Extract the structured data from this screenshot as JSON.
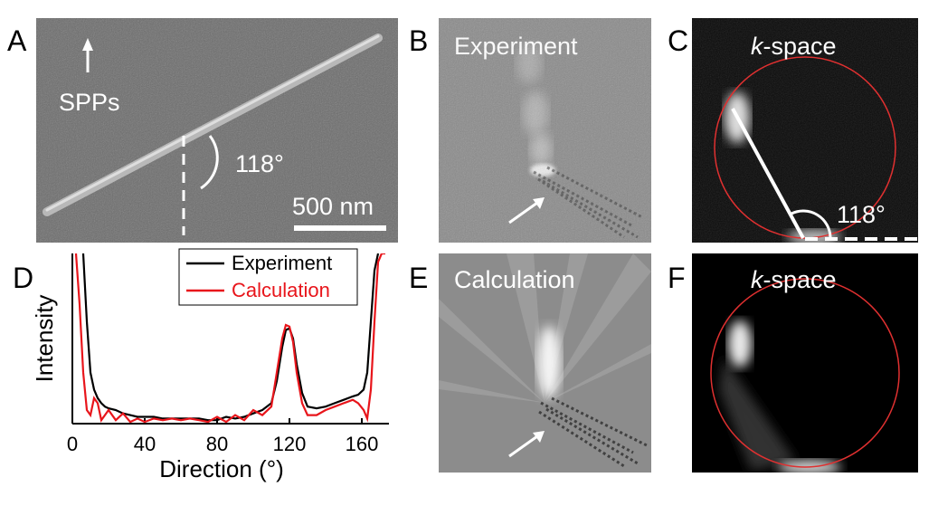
{
  "panels": {
    "A": {
      "label": "A",
      "arrow_text": "SPPs",
      "angle": "118°",
      "scale_bar": "500 nm"
    },
    "B": {
      "label": "B",
      "title": "Experiment"
    },
    "C": {
      "label": "C",
      "title_italic": "k",
      "title_rest": "-space",
      "angle": "118°"
    },
    "D": {
      "label": "D"
    },
    "E": {
      "label": "E",
      "title": "Calculation"
    },
    "F": {
      "label": "F",
      "title_italic": "k",
      "title_rest": "-space"
    }
  },
  "chart_data": {
    "type": "line",
    "xlabel": "Direction (°)",
    "ylabel": "Intensity",
    "x": [
      2,
      4,
      6,
      8,
      10,
      12,
      14,
      16,
      18,
      20,
      24,
      28,
      32,
      36,
      40,
      45,
      50,
      55,
      60,
      65,
      70,
      75,
      80,
      85,
      90,
      95,
      100,
      105,
      110,
      113,
      116,
      118,
      120,
      122,
      124,
      127,
      130,
      135,
      140,
      145,
      150,
      155,
      158,
      161,
      163,
      165,
      167,
      169,
      171,
      173
    ],
    "series": [
      {
        "name": "Experiment",
        "color": "#000000",
        "values": [
          null,
          null,
          1.0,
          0.6,
          0.3,
          0.2,
          0.15,
          0.12,
          0.1,
          0.09,
          0.08,
          0.06,
          0.05,
          0.04,
          0.04,
          0.04,
          0.03,
          0.03,
          0.03,
          0.03,
          0.03,
          0.02,
          0.02,
          0.04,
          0.03,
          0.04,
          0.06,
          0.08,
          0.12,
          0.25,
          0.45,
          0.55,
          0.56,
          0.5,
          0.35,
          0.18,
          0.1,
          0.09,
          0.1,
          0.12,
          0.14,
          0.16,
          0.17,
          0.2,
          0.3,
          0.6,
          0.9,
          1.0,
          null,
          null
        ]
      },
      {
        "name": "Calculation",
        "color": "#e8151b",
        "values": [
          1.0,
          0.7,
          0.3,
          0.08,
          0.05,
          0.15,
          0.12,
          0.02,
          0.05,
          0.08,
          0.02,
          0.06,
          0.01,
          0.03,
          0.01,
          0.03,
          0.02,
          0.03,
          0.02,
          0.03,
          0.02,
          0.01,
          0.04,
          0.01,
          0.05,
          0.02,
          0.08,
          0.05,
          0.1,
          0.3,
          0.5,
          0.58,
          0.57,
          0.48,
          0.3,
          0.12,
          0.05,
          0.05,
          0.08,
          0.1,
          0.12,
          0.14,
          0.12,
          0.08,
          0.03,
          0.2,
          0.6,
          0.95,
          1.0,
          1.0
        ]
      }
    ],
    "xlim": [
      0,
      175
    ],
    "ylim": [
      0,
      1
    ],
    "xticks": [
      0,
      40,
      80,
      120,
      160
    ]
  }
}
